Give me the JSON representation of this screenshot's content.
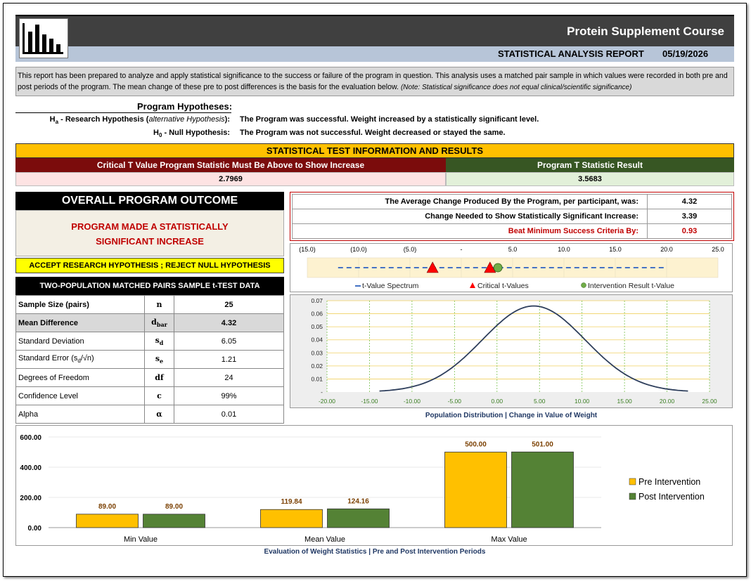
{
  "header": {
    "title": "Protein Supplement Course",
    "report_label": "STATISTICAL ANALYSIS REPORT",
    "date": "05/19/2026"
  },
  "intro": {
    "text": "This report has been prepared to analyze and apply statistical significance to the success or failure of the program in question.  This analysis uses a matched pair sample in which values were recorded in both pre and post periods of the program.  The mean change of these pre to post differences is the basis for the evaluation below.",
    "note": "(Note: Statistical significance does not equal clinical/scientific significance)"
  },
  "hypotheses": {
    "title": "Program Hypotheses:",
    "research_prefix": "H",
    "research_sub": "a",
    "research_label": " - Research Hypothesis (",
    "research_alt": "alternative Hypothesis",
    "research_close": "):",
    "research_text": "The Program was successful.  Weight increased by a statistically significant level.",
    "null_prefix": "H",
    "null_sub": "0",
    "null_label": " - Null Hypothesis:",
    "null_text": "The Program was not successful.  Weight decreased or stayed the same."
  },
  "test_info": {
    "title": "STATISTICAL TEST INFORMATION AND RESULTS",
    "critical_label": "Critical T Value Program Statistic Must Be Above to Show Increase",
    "critical_value": "2.7969",
    "program_label": "Program T Statistic Result",
    "program_value": "3.5683"
  },
  "outcome": {
    "title": "OVERALL PROGRAM OUTCOME",
    "result": "PROGRAM MADE A STATISTICALLY SIGNIFICANT INCREASE",
    "decision": "ACCEPT RESEARCH HYPOTHESIS ; REJECT NULL HYPOTHESIS"
  },
  "ttest": {
    "title": "TWO-POPULATION MATCHED PAIRS SAMPLE t-TEST DATA",
    "rows": [
      {
        "label": "Sample Size (pairs)",
        "sym": "n",
        "sub": "",
        "value": "25"
      },
      {
        "label": "Mean Difference",
        "sym": "d",
        "sub": "bar",
        "value": "4.32"
      },
      {
        "label": "Standard Deviation",
        "sym": "s",
        "sub": "d",
        "value": "6.05"
      },
      {
        "label": "Standard Error (s",
        "sym": "s",
        "sub": "e",
        "value": "1.21",
        "label_sub": "d",
        "label_tail": "/√n)"
      },
      {
        "label": "Degrees of Freedom",
        "sym": "df",
        "sub": "",
        "value": "24"
      },
      {
        "label": "Confidence Level",
        "sym": "c",
        "sub": "",
        "value": "99%"
      },
      {
        "label": "Alpha",
        "sym": "α",
        "sub": "",
        "value": "0.01"
      }
    ]
  },
  "avg_change": {
    "rows": [
      {
        "label": "The Average Change Produced By the Program, per participant, was:",
        "value": "4.32"
      },
      {
        "label": "Change Needed to Show Statistically Significant Increase:",
        "value": "3.39"
      },
      {
        "label": "Beat Minimum Success Criteria By:",
        "value": "0.93"
      }
    ]
  },
  "chart_data": [
    {
      "type": "scatter",
      "axis_ticks": [
        "(15.0)",
        "(10.0)",
        "(5.0)",
        "-",
        "5.0",
        "10.0",
        "15.0",
        "20.0",
        "25.0"
      ],
      "xlim": [
        -15,
        25
      ],
      "spectrum": [
        -12,
        20
      ],
      "critical_values": [
        -2.7969,
        2.7969
      ],
      "result_value": 3.5683,
      "legend": [
        "t-Value Spectrum",
        "Critical t-Values",
        "Intervention Result t-Value"
      ],
      "colors": {
        "spectrum": "#4472c4",
        "critical": "#c00000",
        "result": "#70ad47"
      }
    },
    {
      "type": "line",
      "xlabel": "Population Distribution  |  Change in Value of Weight",
      "x_ticks": [
        "-20.00",
        "-15.00",
        "-10.00",
        "-5.00",
        "0.00",
        "5.00",
        "10.00",
        "15.00",
        "20.00",
        "25.00"
      ],
      "y_ticks": [
        "-",
        "0.01",
        "0.02",
        "0.03",
        "0.04",
        "0.05",
        "0.06",
        "0.07"
      ],
      "xlim": [
        -20,
        25
      ],
      "ylim": [
        0,
        0.07
      ],
      "mean": 4.32,
      "sd": 6.05,
      "x_range": [
        -13.83,
        22.47
      ]
    },
    {
      "type": "bar",
      "xlabel": "Evaluation of Weight Statistics | Pre and Post Intervention Periods",
      "categories": [
        "Min Value",
        "Mean Value",
        "Max Value"
      ],
      "series": [
        {
          "name": "Pre Intervention",
          "values": [
            89.0,
            119.84,
            500.0
          ],
          "labels": [
            "89.00",
            "119.84",
            "500.00"
          ],
          "color": "#ffc000"
        },
        {
          "name": "Post Intervention",
          "values": [
            89.0,
            124.16,
            501.0
          ],
          "labels": [
            "89.00",
            "124.16",
            "501.00"
          ],
          "color": "#548235"
        }
      ],
      "y_ticks": [
        "0.00",
        "200.00",
        "400.00",
        "600.00"
      ],
      "ylim": [
        0,
        600
      ]
    }
  ]
}
